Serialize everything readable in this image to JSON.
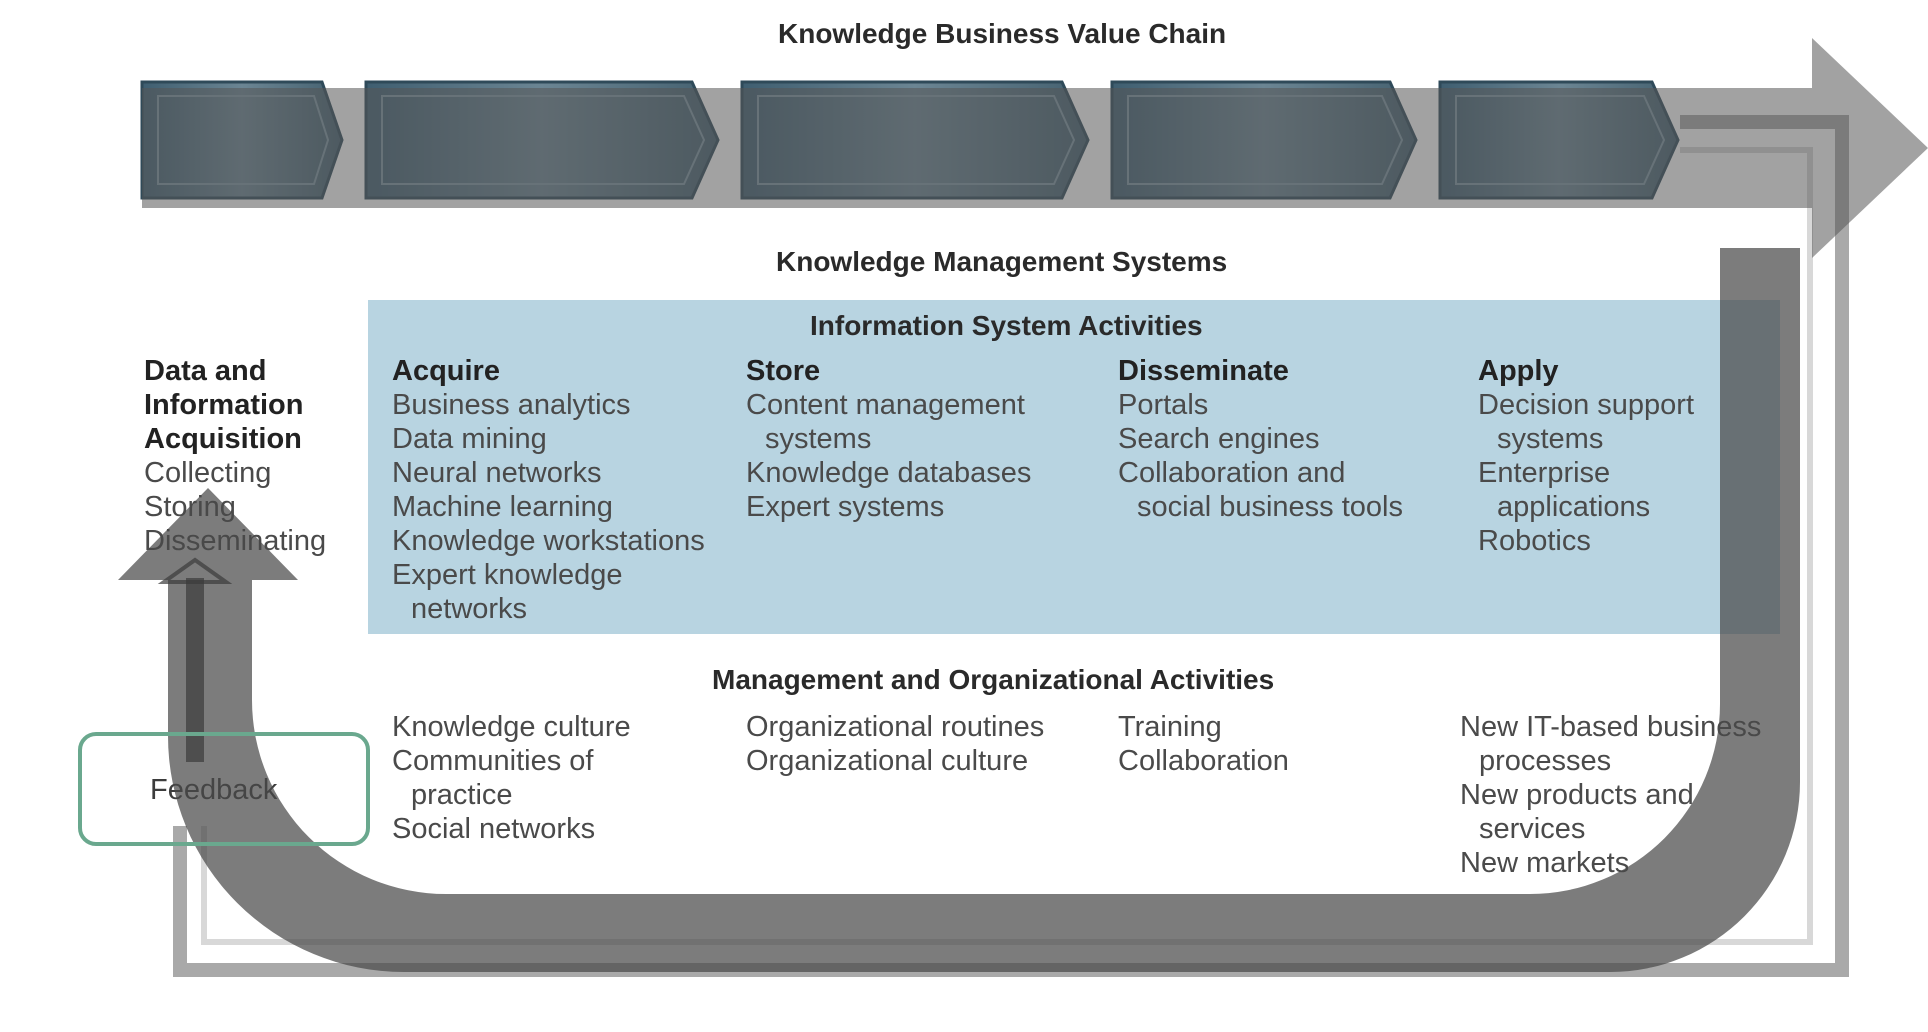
{
  "titles": {
    "value_chain": "Knowledge Business Value Chain",
    "kms": "Knowledge Management Systems",
    "is_activities": "Information System Activities",
    "mgmt_activities": "Management and Organizational Activities"
  },
  "left_column": {
    "heading": [
      "Data and",
      "Information",
      "Acquisition"
    ],
    "items": [
      "Collecting",
      "Storing",
      "Disseminating"
    ]
  },
  "is_columns": [
    {
      "heading": "Acquire",
      "lines": [
        {
          "text": "Business analytics",
          "indent": false
        },
        {
          "text": "Data mining",
          "indent": false
        },
        {
          "text": "Neural networks",
          "indent": false
        },
        {
          "text": "Machine learning",
          "indent": false
        },
        {
          "text": "Knowledge workstations",
          "indent": false
        },
        {
          "text": "Expert knowledge",
          "indent": false
        },
        {
          "text": "networks",
          "indent": true
        }
      ]
    },
    {
      "heading": "Store",
      "lines": [
        {
          "text": "Content management",
          "indent": false
        },
        {
          "text": "systems",
          "indent": true
        },
        {
          "text": "Knowledge databases",
          "indent": false
        },
        {
          "text": "Expert systems",
          "indent": false
        }
      ]
    },
    {
      "heading": "Disseminate",
      "lines": [
        {
          "text": "Portals",
          "indent": false
        },
        {
          "text": "Search engines",
          "indent": false
        },
        {
          "text": "Collaboration and",
          "indent": false
        },
        {
          "text": "social business tools",
          "indent": true
        }
      ]
    },
    {
      "heading": "Apply",
      "lines": [
        {
          "text": "Decision support",
          "indent": false
        },
        {
          "text": "systems",
          "indent": true
        },
        {
          "text": "Enterprise",
          "indent": false
        },
        {
          "text": "applications",
          "indent": true
        },
        {
          "text": "Robotics",
          "indent": false
        }
      ]
    }
  ],
  "mgmt_columns": [
    {
      "lines": [
        {
          "text": "Knowledge culture",
          "indent": false
        },
        {
          "text": "Communities of",
          "indent": false
        },
        {
          "text": "practice",
          "indent": true
        },
        {
          "text": "Social networks",
          "indent": false
        }
      ]
    },
    {
      "lines": [
        {
          "text": "Organizational routines",
          "indent": false
        },
        {
          "text": "Organizational culture",
          "indent": false
        }
      ]
    },
    {
      "lines": [
        {
          "text": "Training",
          "indent": false
        },
        {
          "text": "Collaboration",
          "indent": false
        }
      ]
    },
    {
      "lines": [
        {
          "text": "New IT-based business",
          "indent": false
        },
        {
          "text": "processes",
          "indent": true
        },
        {
          "text": "New products and",
          "indent": false
        },
        {
          "text": "services",
          "indent": true
        },
        {
          "text": "New markets",
          "indent": false
        }
      ]
    }
  ],
  "feedback_label": "Feedback",
  "colors": {
    "chevron": "#4d6a7c",
    "chevron_light": "#6d8796",
    "panel": "#b8d4e1",
    "arrow": "#6e6e6e",
    "feedback_border": "#6aa88e"
  }
}
